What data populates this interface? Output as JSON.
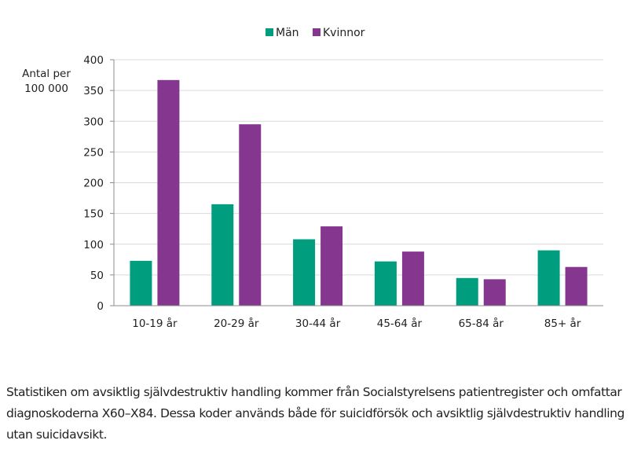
{
  "chart_data": {
    "type": "bar",
    "title": "",
    "xlabel": "",
    "ylabel": "Antal per 100 000",
    "ylabel_lines": [
      "Antal per",
      "100 000"
    ],
    "ylim": [
      0,
      400
    ],
    "yticks": [
      0,
      50,
      100,
      150,
      200,
      250,
      300,
      350,
      400
    ],
    "grid": true,
    "legend_position": "top-center",
    "categories": [
      "10-19 år",
      "20-29 år",
      "30-44 år",
      "45-64 år",
      "65-84 år",
      "85+ år"
    ],
    "series": [
      {
        "name": "Män",
        "color": "#009e7e",
        "values": [
          73,
          165,
          108,
          72,
          45,
          90
        ]
      },
      {
        "name": "Kvinnor",
        "color": "#85378f",
        "values": [
          367,
          295,
          129,
          88,
          43,
          63
        ]
      }
    ]
  },
  "caption": "Statistiken om avsiktlig självdestruktiv handling kommer från Socialstyrelsens patientregister och omfattar diagnoskoderna X60–X84. Dessa koder används både för suicidförsök och avsiktlig självdestruktiv handling utan suicidavsikt."
}
